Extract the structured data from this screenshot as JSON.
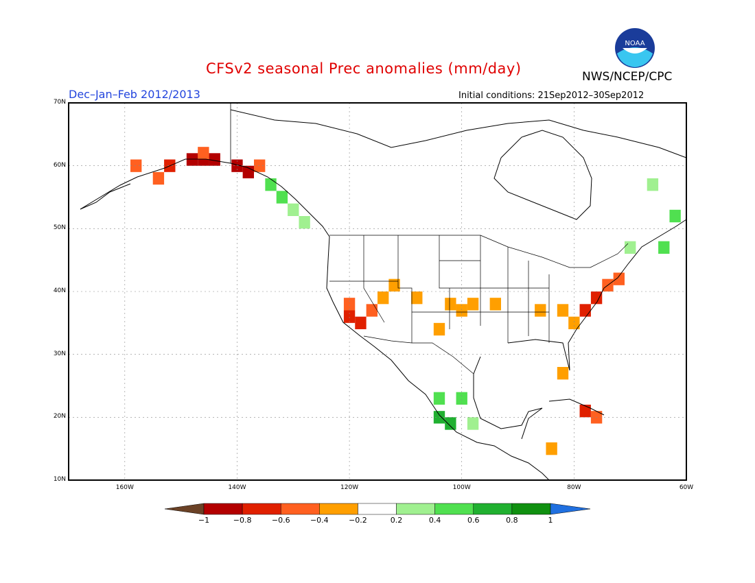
{
  "title": "CFSv2 seasonal Prec anomalies (mm/day)",
  "agency": "NWS/NCEP/CPC",
  "season": "Dec–Jan–Feb 2012/2013",
  "initial_conditions": "Initial conditions: 21Sep2012–30Sep2012",
  "logo_text": "NOAA",
  "lat_labels": [
    "70N",
    "60N",
    "50N",
    "40N",
    "30N",
    "20N",
    "10N"
  ],
  "lon_labels": [
    "160W",
    "140W",
    "120W",
    "100W",
    "80W",
    "60W"
  ],
  "colorbar": {
    "labels": [
      "−1",
      "−0.8",
      "−0.6",
      "−0.4",
      "−0.2",
      "0.2",
      "0.4",
      "0.6",
      "0.8",
      "1"
    ],
    "colors": [
      "#6b4226",
      "#b30000",
      "#e02000",
      "#ff6020",
      "#ff9f00",
      "#ffffff",
      "#a0f090",
      "#50e050",
      "#20b030",
      "#109010",
      "#2070e0"
    ]
  },
  "chart_data": {
    "type": "heatmap",
    "title": "CFSv2 seasonal Prec anomalies (mm/day)",
    "xlim": [
      -170,
      -60
    ],
    "ylim": [
      10,
      70
    ],
    "cell_size_deg": 2,
    "anomaly_cells": [
      {
        "lon": -152,
        "lat": 60,
        "value": -0.6
      },
      {
        "lon": -148,
        "lat": 61,
        "value": -0.8
      },
      {
        "lon": -146,
        "lat": 61,
        "value": -0.9
      },
      {
        "lon": -144,
        "lat": 61,
        "value": -0.8
      },
      {
        "lon": -140,
        "lat": 60,
        "value": -0.8
      },
      {
        "lon": -138,
        "lat": 59,
        "value": -0.8
      },
      {
        "lon": -146,
        "lat": 62,
        "value": -0.4
      },
      {
        "lon": -154,
        "lat": 58,
        "value": -0.4
      },
      {
        "lon": -158,
        "lat": 60,
        "value": -0.4
      },
      {
        "lon": -136,
        "lat": 60,
        "value": -0.4
      },
      {
        "lon": -134,
        "lat": 57,
        "value": 0.4
      },
      {
        "lon": -132,
        "lat": 55,
        "value": 0.4
      },
      {
        "lon": -130,
        "lat": 53,
        "value": 0.3
      },
      {
        "lon": -128,
        "lat": 51,
        "value": 0.3
      },
      {
        "lon": -120,
        "lat": 36,
        "value": -0.7
      },
      {
        "lon": -118,
        "lat": 35,
        "value": -0.7
      },
      {
        "lon": -120,
        "lat": 38,
        "value": -0.4
      },
      {
        "lon": -116,
        "lat": 37,
        "value": -0.4
      },
      {
        "lon": -114,
        "lat": 39,
        "value": -0.3
      },
      {
        "lon": -112,
        "lat": 41,
        "value": -0.3
      },
      {
        "lon": -108,
        "lat": 39,
        "value": -0.3
      },
      {
        "lon": -102,
        "lat": 38,
        "value": -0.3
      },
      {
        "lon": -100,
        "lat": 37,
        "value": -0.3
      },
      {
        "lon": -98,
        "lat": 38,
        "value": -0.3
      },
      {
        "lon": -94,
        "lat": 38,
        "value": -0.3
      },
      {
        "lon": -104,
        "lat": 34,
        "value": -0.3
      },
      {
        "lon": -86,
        "lat": 37,
        "value": -0.3
      },
      {
        "lon": -82,
        "lat": 37,
        "value": -0.3
      },
      {
        "lon": -78,
        "lat": 37,
        "value": -0.6
      },
      {
        "lon": -80,
        "lat": 35,
        "value": -0.3
      },
      {
        "lon": -76,
        "lat": 39,
        "value": -0.6
      },
      {
        "lon": -74,
        "lat": 41,
        "value": -0.4
      },
      {
        "lon": -72,
        "lat": 42,
        "value": -0.4
      },
      {
        "lon": -82,
        "lat": 27,
        "value": -0.3
      },
      {
        "lon": -78,
        "lat": 21,
        "value": -0.6
      },
      {
        "lon": -76,
        "lat": 20,
        "value": -0.4
      },
      {
        "lon": -84,
        "lat": 15,
        "value": -0.3
      },
      {
        "lon": -104,
        "lat": 23,
        "value": 0.4
      },
      {
        "lon": -104,
        "lat": 20,
        "value": 0.6
      },
      {
        "lon": -102,
        "lat": 19,
        "value": 0.7
      },
      {
        "lon": -100,
        "lat": 23,
        "value": 0.4
      },
      {
        "lon": -98,
        "lat": 19,
        "value": 0.3
      },
      {
        "lon": -70,
        "lat": 47,
        "value": 0.3
      },
      {
        "lon": -62,
        "lat": 52,
        "value": 0.4
      },
      {
        "lon": -64,
        "lat": 47,
        "value": 0.5
      },
      {
        "lon": -66,
        "lat": 57,
        "value": 0.3
      }
    ]
  }
}
